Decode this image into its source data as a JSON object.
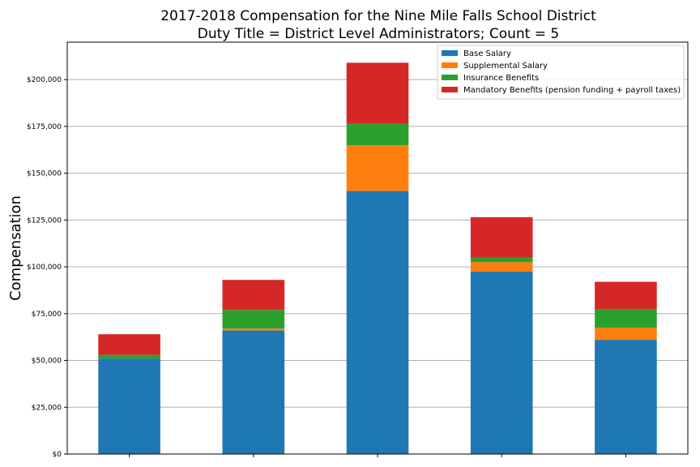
{
  "chart_data": {
    "type": "bar",
    "stacked": true,
    "title": "2017-2018 Compensation for the Nine Mile Falls School District",
    "subtitle": "Duty Title = District Level Administrators; Count = 5",
    "xlabel": "",
    "ylabel": "Compensation",
    "ylim": [
      0,
      220000
    ],
    "yticks": [
      0,
      25000,
      50000,
      75000,
      100000,
      125000,
      150000,
      175000,
      200000
    ],
    "ytick_labels": [
      "$0",
      "$25,000",
      "$50,000",
      "$75,000",
      "$100,000",
      "$125,000",
      "$150,000",
      "$175,000",
      "$200,000"
    ],
    "categories": [
      "",
      "",
      "",
      "",
      ""
    ],
    "grid": "horizontal",
    "legend_position": "top-right",
    "series": [
      {
        "name": "Base Salary",
        "color": "#1f77b4",
        "values": [
          51000,
          66000,
          140500,
          97500,
          61000
        ]
      },
      {
        "name": "Supplemental Salary",
        "color": "#ff7f0e",
        "values": [
          0,
          1000,
          24500,
          5000,
          6500
        ]
      },
      {
        "name": "Insurance Benefits",
        "color": "#2ca02c",
        "values": [
          2000,
          10000,
          11500,
          2500,
          10000
        ]
      },
      {
        "name": "Mandatory Benefits (pension funding + payroll taxes)",
        "color": "#d62728",
        "values": [
          11000,
          16000,
          32500,
          21500,
          14500
        ]
      }
    ]
  }
}
